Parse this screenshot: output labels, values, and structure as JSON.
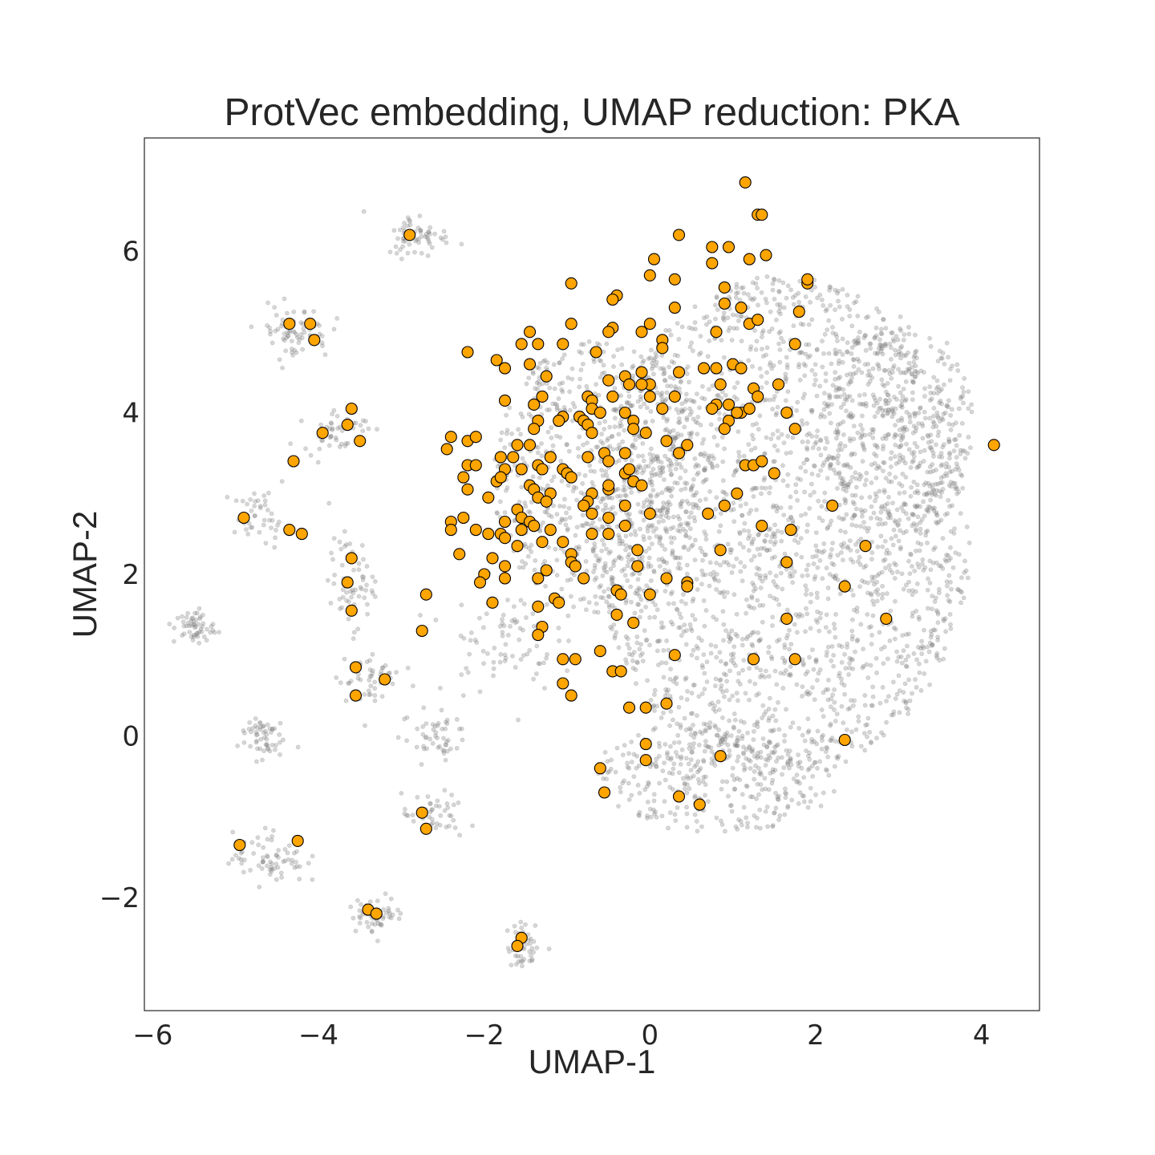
{
  "chart_data": {
    "type": "scatter",
    "title": "ProtVec embedding, UMAP reduction: PKA",
    "xlabel": "UMAP-1",
    "ylabel": "UMAP-2",
    "xlim": [
      -6.1,
      4.7
    ],
    "ylim": [
      -3.4,
      7.4
    ],
    "x_ticks": [
      -6,
      -4,
      -2,
      0,
      2,
      4
    ],
    "y_ticks": [
      -2,
      0,
      2,
      4,
      6
    ],
    "x_tick_labels": [
      "−6",
      "−4",
      "−2",
      "0",
      "2",
      "4"
    ],
    "y_tick_labels": [
      "−2",
      "0",
      "2",
      "4",
      "6"
    ],
    "grid": false,
    "colors": {
      "background_points": "#808080",
      "highlight_points": "#ffa500",
      "highlight_edge": "#000000"
    },
    "background_clusters": [
      {
        "cx": 1.6,
        "cy": 2.6,
        "rx": 2.3,
        "ry": 3.1,
        "n": 2200
      },
      {
        "cx": 3.0,
        "cy": 3.8,
        "rx": 0.9,
        "ry": 1.4,
        "n": 350
      },
      {
        "cx": -0.6,
        "cy": 3.2,
        "rx": 1.3,
        "ry": 1.7,
        "n": 700
      },
      {
        "cx": 0.8,
        "cy": -0.5,
        "rx": 1.5,
        "ry": 0.7,
        "n": 350
      },
      {
        "cx": -2.8,
        "cy": 6.2,
        "rx": 0.35,
        "ry": 0.25,
        "n": 60
      },
      {
        "cx": -4.3,
        "cy": 5.0,
        "rx": 0.4,
        "ry": 0.3,
        "n": 70
      },
      {
        "cx": -3.8,
        "cy": 3.8,
        "rx": 0.35,
        "ry": 0.25,
        "n": 50
      },
      {
        "cx": -4.7,
        "cy": 2.7,
        "rx": 0.3,
        "ry": 0.3,
        "n": 45
      },
      {
        "cx": -5.5,
        "cy": 1.35,
        "rx": 0.22,
        "ry": 0.2,
        "n": 55
      },
      {
        "cx": -3.6,
        "cy": 1.9,
        "rx": 0.25,
        "ry": 0.5,
        "n": 60
      },
      {
        "cx": -3.4,
        "cy": 0.7,
        "rx": 0.35,
        "ry": 0.35,
        "n": 50
      },
      {
        "cx": -4.7,
        "cy": 0.0,
        "rx": 0.25,
        "ry": 0.25,
        "n": 55
      },
      {
        "cx": -2.6,
        "cy": 0.0,
        "rx": 0.35,
        "ry": 0.3,
        "n": 50
      },
      {
        "cx": -2.6,
        "cy": -1.0,
        "rx": 0.35,
        "ry": 0.25,
        "n": 45
      },
      {
        "cx": -4.6,
        "cy": -1.5,
        "rx": 0.4,
        "ry": 0.3,
        "n": 70
      },
      {
        "cx": -3.3,
        "cy": -2.2,
        "rx": 0.3,
        "ry": 0.2,
        "n": 55
      },
      {
        "cx": -1.5,
        "cy": -2.6,
        "rx": 0.2,
        "ry": 0.25,
        "n": 45
      },
      {
        "cx": -1.8,
        "cy": 1.2,
        "rx": 0.6,
        "ry": 0.6,
        "n": 80
      }
    ],
    "series": [
      {
        "points": [
          [
            1.15,
            6.85
          ],
          [
            1.3,
            6.45
          ],
          [
            1.35,
            6.45
          ],
          [
            0.35,
            6.2
          ],
          [
            0.75,
            6.05
          ],
          [
            0.95,
            6.05
          ],
          [
            1.4,
            5.95
          ],
          [
            1.2,
            5.9
          ],
          [
            0.75,
            5.85
          ],
          [
            0.05,
            5.9
          ],
          [
            -0.0,
            5.7
          ],
          [
            0.3,
            5.65
          ],
          [
            -0.95,
            5.6
          ],
          [
            -0.4,
            5.45
          ],
          [
            -0.45,
            5.4
          ],
          [
            0.9,
            5.55
          ],
          [
            1.9,
            5.6
          ],
          [
            1.9,
            5.65
          ],
          [
            0.3,
            5.3
          ],
          [
            0.9,
            5.35
          ],
          [
            1.1,
            5.3
          ],
          [
            1.8,
            5.25
          ],
          [
            -0.95,
            5.1
          ],
          [
            -0.45,
            5.05
          ],
          [
            -0.5,
            5.0
          ],
          [
            -0.1,
            5.0
          ],
          [
            0.0,
            5.1
          ],
          [
            0.8,
            5.0
          ],
          [
            1.2,
            5.1
          ],
          [
            1.3,
            5.15
          ],
          [
            -1.45,
            5.0
          ],
          [
            -1.55,
            4.85
          ],
          [
            -1.35,
            4.85
          ],
          [
            -1.05,
            4.85
          ],
          [
            0.15,
            4.9
          ],
          [
            0.15,
            4.8
          ],
          [
            1.75,
            4.85
          ],
          [
            -2.2,
            4.75
          ],
          [
            -1.85,
            4.65
          ],
          [
            -1.75,
            4.55
          ],
          [
            -1.45,
            4.6
          ],
          [
            -0.65,
            4.75
          ],
          [
            -0.5,
            4.4
          ],
          [
            -0.1,
            4.5
          ],
          [
            0.35,
            4.5
          ],
          [
            0.65,
            4.55
          ],
          [
            0.8,
            4.55
          ],
          [
            1.0,
            4.6
          ],
          [
            1.1,
            4.55
          ],
          [
            -1.25,
            4.45
          ],
          [
            -0.3,
            4.45
          ],
          [
            0.0,
            4.35
          ],
          [
            -0.25,
            4.35
          ],
          [
            0.85,
            4.35
          ],
          [
            1.25,
            4.3
          ],
          [
            1.3,
            4.2
          ],
          [
            1.55,
            4.35
          ],
          [
            -1.75,
            4.15
          ],
          [
            -1.4,
            4.1
          ],
          [
            -1.3,
            4.2
          ],
          [
            -0.75,
            4.2
          ],
          [
            -0.7,
            4.15
          ],
          [
            -0.45,
            4.2
          ],
          [
            0.0,
            4.2
          ],
          [
            0.3,
            4.2
          ],
          [
            0.8,
            4.1
          ],
          [
            0.95,
            4.1
          ],
          [
            -0.7,
            4.05
          ],
          [
            -0.6,
            4.0
          ],
          [
            -0.3,
            4.0
          ],
          [
            -0.1,
            4.35
          ],
          [
            0.15,
            4.05
          ],
          [
            0.75,
            4.05
          ],
          [
            1.1,
            4.0
          ],
          [
            1.2,
            4.05
          ],
          [
            1.65,
            4.0
          ],
          [
            -1.05,
            3.95
          ],
          [
            -1.1,
            3.9
          ],
          [
            -0.85,
            3.95
          ],
          [
            -0.8,
            3.9
          ],
          [
            -0.75,
            3.85
          ],
          [
            -0.2,
            3.9
          ],
          [
            -0.2,
            3.8
          ],
          [
            0.95,
            3.9
          ],
          [
            1.05,
            4.0
          ],
          [
            -1.35,
            3.9
          ],
          [
            -1.4,
            3.8
          ],
          [
            -0.7,
            3.75
          ],
          [
            -0.05,
            3.75
          ],
          [
            0.9,
            3.8
          ],
          [
            1.75,
            3.8
          ],
          [
            -2.4,
            3.7
          ],
          [
            -2.2,
            3.65
          ],
          [
            -2.1,
            3.7
          ],
          [
            -2.45,
            3.55
          ],
          [
            -1.6,
            3.6
          ],
          [
            -1.45,
            3.6
          ],
          [
            0.2,
            3.65
          ],
          [
            0.45,
            3.6
          ],
          [
            -0.3,
            3.5
          ],
          [
            -0.55,
            3.5
          ],
          [
            -0.75,
            3.45
          ],
          [
            -1.8,
            3.45
          ],
          [
            -1.65,
            3.45
          ],
          [
            -1.2,
            3.45
          ],
          [
            0.35,
            3.5
          ],
          [
            -2.2,
            3.35
          ],
          [
            -2.1,
            3.35
          ],
          [
            -1.75,
            3.3
          ],
          [
            -1.55,
            3.3
          ],
          [
            -1.35,
            3.35
          ],
          [
            -1.3,
            3.3
          ],
          [
            -1.05,
            3.3
          ],
          [
            -0.5,
            3.4
          ],
          [
            1.15,
            3.35
          ],
          [
            1.25,
            3.35
          ],
          [
            1.35,
            3.4
          ],
          [
            -2.25,
            3.2
          ],
          [
            -1.85,
            3.15
          ],
          [
            -1.8,
            3.2
          ],
          [
            -1.0,
            3.25
          ],
          [
            -0.95,
            3.2
          ],
          [
            -0.3,
            3.25
          ],
          [
            -0.25,
            3.3
          ],
          [
            -0.2,
            3.15
          ],
          [
            -0.1,
            3.1
          ],
          [
            1.5,
            3.25
          ],
          [
            -2.2,
            3.05
          ],
          [
            -1.45,
            3.1
          ],
          [
            -1.4,
            3.05
          ],
          [
            -1.2,
            3.0
          ],
          [
            -0.7,
            3.0
          ],
          [
            -0.5,
            3.05
          ],
          [
            -0.5,
            3.1
          ],
          [
            1.05,
            3.0
          ],
          [
            -1.95,
            2.95
          ],
          [
            -1.35,
            2.95
          ],
          [
            -1.25,
            2.9
          ],
          [
            -0.75,
            2.9
          ],
          [
            -0.8,
            2.85
          ],
          [
            -0.3,
            2.85
          ],
          [
            0.9,
            2.85
          ],
          [
            2.2,
            2.85
          ],
          [
            -2.25,
            2.7
          ],
          [
            -2.4,
            2.65
          ],
          [
            -1.6,
            2.8
          ],
          [
            -1.55,
            2.7
          ],
          [
            -1.75,
            2.65
          ],
          [
            -1.45,
            2.65
          ],
          [
            -0.7,
            2.75
          ],
          [
            -0.5,
            2.7
          ],
          [
            -0.3,
            2.6
          ],
          [
            0.0,
            2.75
          ],
          [
            0.7,
            2.75
          ],
          [
            1.35,
            2.6
          ],
          [
            -2.4,
            2.55
          ],
          [
            -2.1,
            2.55
          ],
          [
            -1.95,
            2.5
          ],
          [
            -1.8,
            2.5
          ],
          [
            -1.75,
            2.45
          ],
          [
            -1.55,
            2.55
          ],
          [
            -1.4,
            2.6
          ],
          [
            -1.2,
            2.55
          ],
          [
            -0.7,
            2.5
          ],
          [
            -0.5,
            2.5
          ],
          [
            1.7,
            2.55
          ],
          [
            -1.3,
            2.4
          ],
          [
            -1.6,
            2.35
          ],
          [
            -1.05,
            2.4
          ],
          [
            -2.3,
            2.25
          ],
          [
            -1.9,
            2.2
          ],
          [
            -0.95,
            2.25
          ],
          [
            -0.95,
            2.15
          ],
          [
            -0.9,
            2.1
          ],
          [
            -0.15,
            2.3
          ],
          [
            0.85,
            2.3
          ],
          [
            2.6,
            2.35
          ],
          [
            -1.75,
            2.1
          ],
          [
            -1.25,
            2.05
          ],
          [
            -0.15,
            2.1
          ],
          [
            1.65,
            2.15
          ],
          [
            -2.0,
            2.0
          ],
          [
            -1.75,
            1.95
          ],
          [
            -1.35,
            1.95
          ],
          [
            -0.8,
            1.95
          ],
          [
            0.2,
            1.95
          ],
          [
            0.45,
            1.9
          ],
          [
            -2.05,
            1.9
          ],
          [
            -1.15,
            1.7
          ],
          [
            -1.1,
            1.65
          ],
          [
            0.0,
            1.75
          ],
          [
            0.45,
            1.85
          ],
          [
            -0.4,
            1.8
          ],
          [
            -0.35,
            1.75
          ],
          [
            2.35,
            1.85
          ],
          [
            -1.9,
            1.65
          ],
          [
            -1.35,
            1.6
          ],
          [
            -0.4,
            1.5
          ],
          [
            -0.2,
            1.4
          ],
          [
            1.65,
            1.45
          ],
          [
            2.85,
            1.45
          ],
          [
            -1.3,
            1.35
          ],
          [
            -1.35,
            1.25
          ],
          [
            -0.6,
            1.05
          ],
          [
            -1.05,
            0.95
          ],
          [
            -0.9,
            0.95
          ],
          [
            0.3,
            1.0
          ],
          [
            1.25,
            0.95
          ],
          [
            1.75,
            0.95
          ],
          [
            -0.45,
            0.8
          ],
          [
            -0.35,
            0.8
          ],
          [
            -1.05,
            0.65
          ],
          [
            -0.95,
            0.5
          ],
          [
            -0.25,
            0.35
          ],
          [
            -0.05,
            0.35
          ],
          [
            0.2,
            0.4
          ],
          [
            2.35,
            -0.05
          ],
          [
            -0.05,
            -0.1
          ],
          [
            -0.05,
            -0.3
          ],
          [
            0.85,
            -0.25
          ],
          [
            -0.6,
            -0.4
          ],
          [
            -0.55,
            -0.7
          ],
          [
            0.35,
            -0.75
          ],
          [
            0.6,
            -0.85
          ],
          [
            4.15,
            3.6
          ],
          [
            -2.9,
            6.2
          ],
          [
            -4.35,
            5.1
          ],
          [
            -4.1,
            5.1
          ],
          [
            -4.05,
            4.9
          ],
          [
            -3.6,
            4.05
          ],
          [
            -3.65,
            3.85
          ],
          [
            -3.95,
            3.75
          ],
          [
            -3.5,
            3.65
          ],
          [
            -4.3,
            3.4
          ],
          [
            -4.9,
            2.7
          ],
          [
            -4.35,
            2.55
          ],
          [
            -4.2,
            2.5
          ],
          [
            -3.6,
            2.2
          ],
          [
            -3.65,
            1.9
          ],
          [
            -3.6,
            1.55
          ],
          [
            -2.7,
            1.75
          ],
          [
            -2.75,
            1.3
          ],
          [
            -3.55,
            0.85
          ],
          [
            -3.2,
            0.7
          ],
          [
            -3.55,
            0.5
          ],
          [
            -2.75,
            -0.95
          ],
          [
            -2.7,
            -1.15
          ],
          [
            -4.95,
            -1.35
          ],
          [
            -4.25,
            -1.3
          ],
          [
            -3.4,
            -2.15
          ],
          [
            -3.3,
            -2.2
          ],
          [
            -1.55,
            -2.5
          ],
          [
            -1.6,
            -2.6
          ]
        ]
      }
    ]
  }
}
